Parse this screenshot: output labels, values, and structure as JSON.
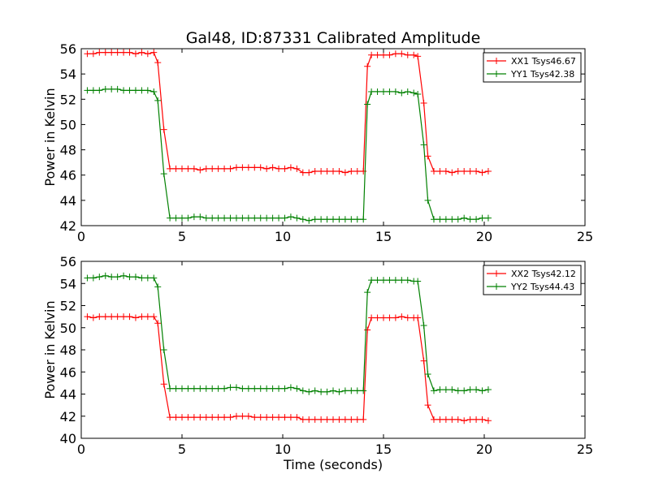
{
  "chart_data": [
    {
      "type": "line",
      "title": "Gal48, ID:87331 Calibrated Amplitude",
      "xlabel": "",
      "ylabel": "Power in Kelvin",
      "xlim": [
        0,
        25
      ],
      "ylim": [
        42,
        56
      ],
      "xticks": [
        0,
        5,
        10,
        15,
        20,
        25
      ],
      "yticks": [
        42,
        44,
        46,
        48,
        50,
        52,
        54,
        56
      ],
      "legend_position": "top-right",
      "series": [
        {
          "name": "XX1 Tsys46.67",
          "color": "#ff0000",
          "x": [
            0.3,
            0.6,
            0.9,
            1.2,
            1.5,
            1.8,
            2.1,
            2.4,
            2.7,
            3.0,
            3.3,
            3.6,
            3.8,
            4.1,
            4.4,
            4.7,
            5.0,
            5.3,
            5.6,
            5.9,
            6.2,
            6.5,
            6.8,
            7.1,
            7.4,
            7.7,
            8.0,
            8.3,
            8.6,
            8.9,
            9.2,
            9.5,
            9.8,
            10.1,
            10.4,
            10.7,
            11.0,
            11.3,
            11.6,
            11.9,
            12.2,
            12.5,
            12.8,
            13.1,
            13.4,
            13.7,
            14.0,
            14.2,
            14.4,
            14.7,
            15.0,
            15.3,
            15.6,
            15.9,
            16.2,
            16.5,
            16.7,
            17.0,
            17.2,
            17.5,
            17.8,
            18.1,
            18.4,
            18.7,
            19.0,
            19.3,
            19.6,
            19.9,
            20.2
          ],
          "y": [
            55.6,
            55.6,
            55.7,
            55.7,
            55.7,
            55.7,
            55.7,
            55.7,
            55.6,
            55.7,
            55.6,
            55.7,
            54.9,
            49.6,
            46.5,
            46.5,
            46.5,
            46.5,
            46.5,
            46.4,
            46.5,
            46.5,
            46.5,
            46.5,
            46.5,
            46.6,
            46.6,
            46.6,
            46.6,
            46.6,
            46.5,
            46.6,
            46.5,
            46.5,
            46.6,
            46.5,
            46.2,
            46.2,
            46.3,
            46.3,
            46.3,
            46.3,
            46.3,
            46.2,
            46.3,
            46.3,
            46.3,
            54.6,
            55.5,
            55.5,
            55.5,
            55.5,
            55.6,
            55.6,
            55.5,
            55.5,
            55.4,
            51.7,
            47.5,
            46.3,
            46.3,
            46.3,
            46.2,
            46.3,
            46.3,
            46.3,
            46.3,
            46.2,
            46.3
          ]
        },
        {
          "name": "YY1 Tsys42.38",
          "color": "#008000",
          "x": [
            0.3,
            0.6,
            0.9,
            1.2,
            1.5,
            1.8,
            2.1,
            2.4,
            2.7,
            3.0,
            3.3,
            3.6,
            3.8,
            4.1,
            4.4,
            4.7,
            5.0,
            5.3,
            5.6,
            5.9,
            6.2,
            6.5,
            6.8,
            7.1,
            7.4,
            7.7,
            8.0,
            8.3,
            8.6,
            8.9,
            9.2,
            9.5,
            9.8,
            10.1,
            10.4,
            10.7,
            11.0,
            11.3,
            11.6,
            11.9,
            12.2,
            12.5,
            12.8,
            13.1,
            13.4,
            13.7,
            14.0,
            14.2,
            14.4,
            14.7,
            15.0,
            15.3,
            15.6,
            15.9,
            16.2,
            16.5,
            16.7,
            17.0,
            17.2,
            17.5,
            17.8,
            18.1,
            18.4,
            18.7,
            19.0,
            19.3,
            19.6,
            19.9,
            20.2
          ],
          "y": [
            52.7,
            52.7,
            52.7,
            52.8,
            52.8,
            52.8,
            52.7,
            52.7,
            52.7,
            52.7,
            52.7,
            52.6,
            51.9,
            46.1,
            42.6,
            42.6,
            42.6,
            42.6,
            42.7,
            42.7,
            42.6,
            42.6,
            42.6,
            42.6,
            42.6,
            42.6,
            42.6,
            42.6,
            42.6,
            42.6,
            42.6,
            42.6,
            42.6,
            42.6,
            42.7,
            42.6,
            42.5,
            42.4,
            42.5,
            42.5,
            42.5,
            42.5,
            42.5,
            42.5,
            42.5,
            42.5,
            42.5,
            51.6,
            52.6,
            52.6,
            52.6,
            52.6,
            52.6,
            52.5,
            52.6,
            52.5,
            52.4,
            48.4,
            44.0,
            42.5,
            42.5,
            42.5,
            42.5,
            42.5,
            42.6,
            42.5,
            42.5,
            42.6,
            42.6
          ]
        }
      ]
    },
    {
      "type": "line",
      "title": "",
      "xlabel": "Time (seconds)",
      "ylabel": "Power in Kelvin",
      "xlim": [
        0,
        25
      ],
      "ylim": [
        40,
        56
      ],
      "xticks": [
        0,
        5,
        10,
        15,
        20,
        25
      ],
      "yticks": [
        40,
        42,
        44,
        46,
        48,
        50,
        52,
        54,
        56
      ],
      "legend_position": "top-right",
      "series": [
        {
          "name": "XX2 Tsys42.12",
          "color": "#ff0000",
          "x": [
            0.3,
            0.6,
            0.9,
            1.2,
            1.5,
            1.8,
            2.1,
            2.4,
            2.7,
            3.0,
            3.3,
            3.6,
            3.8,
            4.1,
            4.4,
            4.7,
            5.0,
            5.3,
            5.6,
            5.9,
            6.2,
            6.5,
            6.8,
            7.1,
            7.4,
            7.7,
            8.0,
            8.3,
            8.6,
            8.9,
            9.2,
            9.5,
            9.8,
            10.1,
            10.4,
            10.7,
            11.0,
            11.3,
            11.6,
            11.9,
            12.2,
            12.5,
            12.8,
            13.1,
            13.4,
            13.7,
            14.0,
            14.2,
            14.4,
            14.7,
            15.0,
            15.3,
            15.6,
            15.9,
            16.2,
            16.5,
            16.7,
            17.0,
            17.2,
            17.5,
            17.8,
            18.1,
            18.4,
            18.7,
            19.0,
            19.3,
            19.6,
            19.9,
            20.2
          ],
          "y": [
            51.0,
            50.9,
            51.0,
            51.0,
            51.0,
            51.0,
            51.0,
            51.0,
            50.9,
            51.0,
            51.0,
            51.0,
            50.4,
            44.9,
            41.9,
            41.9,
            41.9,
            41.9,
            41.9,
            41.9,
            41.9,
            41.9,
            41.9,
            41.9,
            41.9,
            42.0,
            42.0,
            42.0,
            41.9,
            41.9,
            41.9,
            41.9,
            41.9,
            41.9,
            41.9,
            41.9,
            41.7,
            41.7,
            41.7,
            41.7,
            41.7,
            41.7,
            41.7,
            41.7,
            41.7,
            41.7,
            41.7,
            49.8,
            50.9,
            50.9,
            50.9,
            50.9,
            50.9,
            51.0,
            50.9,
            50.9,
            50.9,
            47.0,
            43.0,
            41.7,
            41.7,
            41.7,
            41.7,
            41.7,
            41.6,
            41.7,
            41.7,
            41.7,
            41.6
          ]
        },
        {
          "name": "YY2 Tsys44.43",
          "color": "#008000",
          "x": [
            0.3,
            0.6,
            0.9,
            1.2,
            1.5,
            1.8,
            2.1,
            2.4,
            2.7,
            3.0,
            3.3,
            3.6,
            3.8,
            4.1,
            4.4,
            4.7,
            5.0,
            5.3,
            5.6,
            5.9,
            6.2,
            6.5,
            6.8,
            7.1,
            7.4,
            7.7,
            8.0,
            8.3,
            8.6,
            8.9,
            9.2,
            9.5,
            9.8,
            10.1,
            10.4,
            10.7,
            11.0,
            11.3,
            11.6,
            11.9,
            12.2,
            12.5,
            12.8,
            13.1,
            13.4,
            13.7,
            14.0,
            14.2,
            14.4,
            14.7,
            15.0,
            15.3,
            15.6,
            15.9,
            16.2,
            16.5,
            16.7,
            17.0,
            17.2,
            17.5,
            17.8,
            18.1,
            18.4,
            18.7,
            19.0,
            19.3,
            19.6,
            19.9,
            20.2
          ],
          "y": [
            54.5,
            54.5,
            54.6,
            54.7,
            54.6,
            54.6,
            54.7,
            54.6,
            54.6,
            54.5,
            54.5,
            54.5,
            53.7,
            48.0,
            44.5,
            44.5,
            44.5,
            44.5,
            44.5,
            44.5,
            44.5,
            44.5,
            44.5,
            44.5,
            44.6,
            44.6,
            44.5,
            44.5,
            44.5,
            44.5,
            44.5,
            44.5,
            44.5,
            44.5,
            44.6,
            44.5,
            44.3,
            44.2,
            44.3,
            44.2,
            44.2,
            44.3,
            44.2,
            44.3,
            44.3,
            44.3,
            44.3,
            53.2,
            54.3,
            54.3,
            54.3,
            54.3,
            54.3,
            54.3,
            54.3,
            54.2,
            54.2,
            50.2,
            45.8,
            44.3,
            44.4,
            44.4,
            44.4,
            44.3,
            44.3,
            44.4,
            44.4,
            44.3,
            44.4
          ]
        }
      ]
    }
  ]
}
